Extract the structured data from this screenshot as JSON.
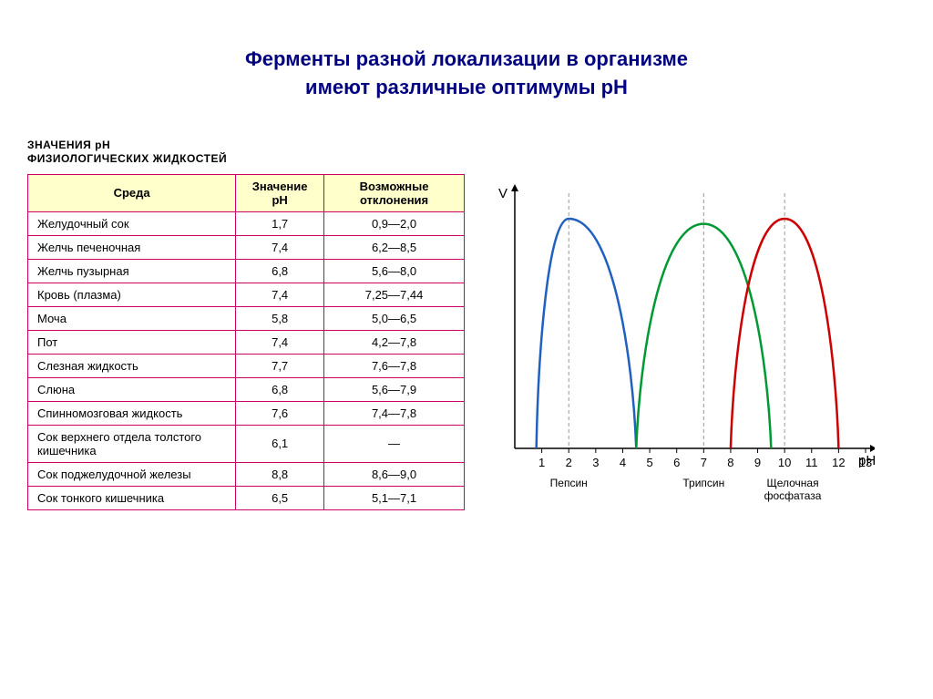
{
  "title_line1": "Ферменты разной локализации в организме",
  "title_line2": "имеют различные оптимумы pH",
  "table": {
    "heading_line1": "ЗНАЧЕНИЯ pH",
    "heading_line2": "ФИЗИОЛОГИЧЕСКИХ ЖИДКОСТЕЙ",
    "columns": [
      "Среда",
      "Значение pH",
      "Возможные отклонения"
    ],
    "rows": [
      [
        "Желудочный сок",
        "1,7",
        "0,9—2,0"
      ],
      [
        "Желчь печеночная",
        "7,4",
        "6,2—8,5"
      ],
      [
        "Желчь пузырная",
        "6,8",
        "5,6—8,0"
      ],
      [
        "Кровь (плазма)",
        "7,4",
        "7,25—7,44"
      ],
      [
        "Моча",
        "5,8",
        "5,0—6,5"
      ],
      [
        "Пот",
        "7,4",
        "4,2—7,8"
      ],
      [
        "Слезная жидкость",
        "7,7",
        "7,6—7,8"
      ],
      [
        "Слюна",
        "6,8",
        "5,6—7,9"
      ],
      [
        "Спинномозговая жидкость",
        "7,6",
        "7,4—7,8"
      ],
      [
        "Сок верхнего отдела толстого кишечника",
        "6,1",
        "—"
      ],
      [
        "Сок поджелудочной железы",
        "8,8",
        "8,6—9,0"
      ],
      [
        "Сок тонкого кишечника",
        "6,5",
        "5,1—7,1"
      ]
    ]
  },
  "chart": {
    "type": "line",
    "x_axis_label": "pH",
    "y_axis_label": "V",
    "x_ticks": [
      1,
      2,
      3,
      4,
      5,
      6,
      7,
      8,
      9,
      10,
      11,
      12,
      13
    ],
    "xlim": [
      0,
      13
    ],
    "ylim": [
      0,
      1
    ],
    "axis_color": "#000000",
    "tick_fontsize": 13,
    "label_fontsize": 15,
    "legend_fontsize": 12,
    "dash_color": "#999999",
    "series": [
      {
        "name": "Пепсин",
        "peak_x": 2,
        "start_x": 0.8,
        "end_x": 4.5,
        "peak_y": 0.9,
        "color": "#2060c0",
        "stroke_width": 2.5
      },
      {
        "name": "Трипсин",
        "peak_x": 7,
        "start_x": 4.5,
        "end_x": 9.5,
        "peak_y": 0.88,
        "color": "#009933",
        "stroke_width": 2.5
      },
      {
        "name": "Щелочная фосфатаза",
        "peak_x": 10,
        "start_x": 8,
        "end_x": 12,
        "peak_y": 0.9,
        "color": "#cc0000",
        "stroke_width": 2.5
      }
    ]
  }
}
